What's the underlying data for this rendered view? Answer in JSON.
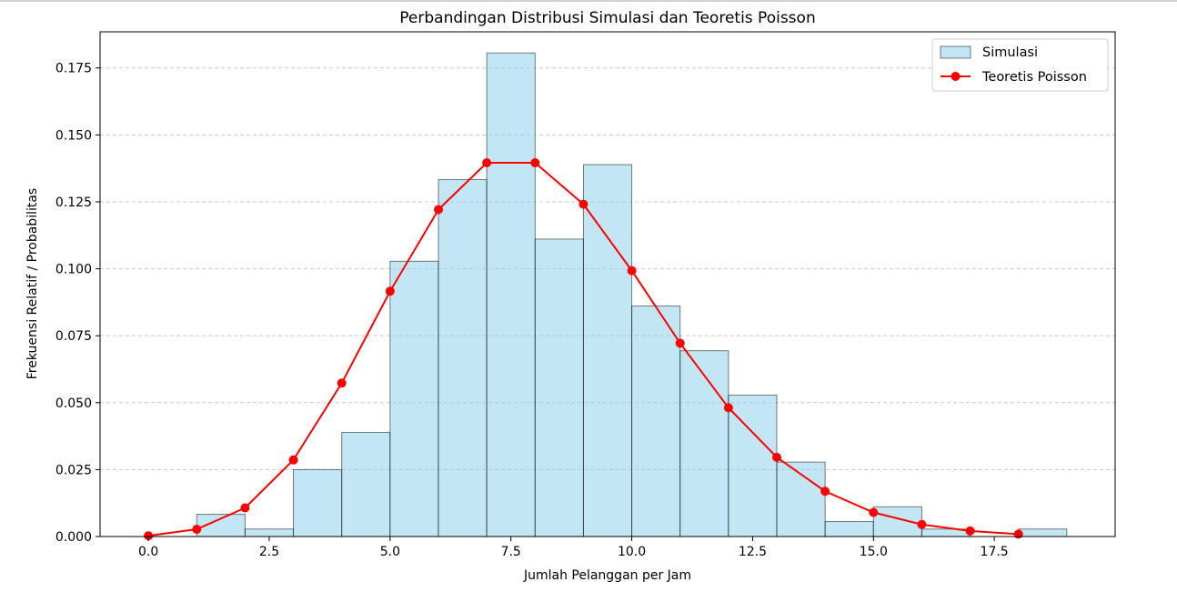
{
  "chart_data": {
    "type": "bar",
    "title": "Perbandingan Distribusi Simulasi dan Teoretis Poisson",
    "xlabel": "Jumlah Pelanggan per Jam",
    "ylabel": "Frekuensi Relatif / Probabilitas",
    "xlim": [
      -1.0,
      20.0
    ],
    "ylim": [
      0.0,
      0.1885
    ],
    "xticks": [
      "0.0",
      "2.5",
      "5.0",
      "7.5",
      "10.0",
      "12.5",
      "15.0",
      "17.5"
    ],
    "xtick_values": [
      0.0,
      2.5,
      5.0,
      7.5,
      10.0,
      12.5,
      15.0,
      17.5
    ],
    "yticks": [
      "0.000",
      "0.025",
      "0.050",
      "0.075",
      "0.100",
      "0.125",
      "0.150",
      "0.175"
    ],
    "ytick_values": [
      0.0,
      0.025,
      0.05,
      0.075,
      0.1,
      0.125,
      0.15,
      0.175
    ],
    "grid": "horizontal dashed",
    "legend_position": "top-right",
    "series": [
      {
        "name": "Simulasi",
        "kind": "histogram",
        "color": "#87ceeb",
        "edge_color": "#000000",
        "bin_edges": [
          1,
          2,
          3,
          4,
          5,
          6,
          7,
          8,
          9,
          10,
          11,
          12,
          13,
          14,
          15,
          16,
          17,
          18,
          19
        ],
        "values": [
          0.0083,
          0.0028,
          0.025,
          0.0389,
          0.1028,
          0.1333,
          0.1806,
          0.1111,
          0.1389,
          0.0861,
          0.0694,
          0.0528,
          0.0278,
          0.0056,
          0.0111,
          0.0028,
          0.0,
          0.0028
        ]
      },
      {
        "name": "Teoretis Poisson",
        "kind": "line",
        "color": "#ff0000",
        "marker": "circle",
        "x": [
          0,
          1,
          2,
          3,
          4,
          5,
          6,
          7,
          8,
          9,
          10,
          11,
          12,
          13,
          14,
          15,
          16,
          17,
          18
        ],
        "values": [
          0.0003,
          0.0027,
          0.0107,
          0.0286,
          0.0573,
          0.0916,
          0.1221,
          0.1396,
          0.1396,
          0.1241,
          0.0993,
          0.0722,
          0.0481,
          0.0296,
          0.0169,
          0.009,
          0.0045,
          0.0021,
          0.0009
        ]
      }
    ]
  }
}
